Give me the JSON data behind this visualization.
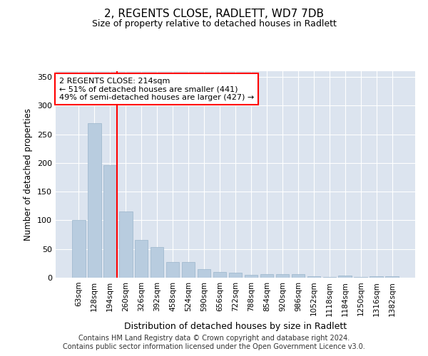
{
  "title": "2, REGENTS CLOSE, RADLETT, WD7 7DB",
  "subtitle": "Size of property relative to detached houses in Radlett",
  "xlabel": "Distribution of detached houses by size in Radlett",
  "ylabel": "Number of detached properties",
  "categories": [
    "63sqm",
    "128sqm",
    "194sqm",
    "260sqm",
    "326sqm",
    "392sqm",
    "458sqm",
    "524sqm",
    "590sqm",
    "656sqm",
    "722sqm",
    "788sqm",
    "854sqm",
    "920sqm",
    "986sqm",
    "1052sqm",
    "1118sqm",
    "1184sqm",
    "1250sqm",
    "1316sqm",
    "1382sqm"
  ],
  "values": [
    100,
    270,
    196,
    115,
    66,
    54,
    27,
    27,
    15,
    10,
    9,
    5,
    6,
    6,
    6,
    3,
    1,
    4,
    1,
    3,
    3
  ],
  "bar_color": "#b8ccdf",
  "bar_edge_color": "#9ab5cc",
  "highlight_index": 2,
  "annotation_text": "2 REGENTS CLOSE: 214sqm\n← 51% of detached houses are smaller (441)\n49% of semi-detached houses are larger (427) →",
  "annotation_box_color": "white",
  "annotation_box_edge_color": "red",
  "ylim": [
    0,
    360
  ],
  "yticks": [
    0,
    50,
    100,
    150,
    200,
    250,
    300,
    350
  ],
  "background_color": "#dce4ef",
  "grid_color": "white",
  "footer_line1": "Contains HM Land Registry data © Crown copyright and database right 2024.",
  "footer_line2": "Contains public sector information licensed under the Open Government Licence v3.0."
}
